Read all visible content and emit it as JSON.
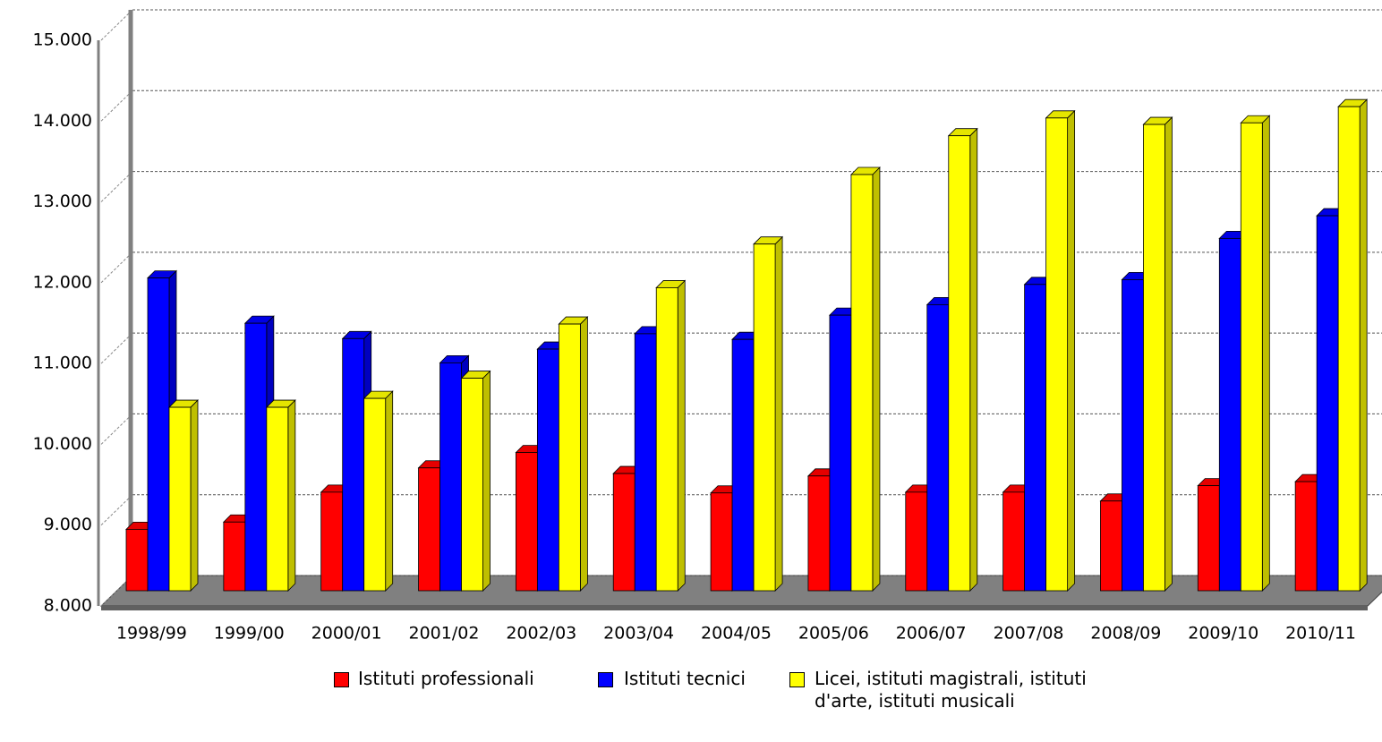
{
  "chart_data": {
    "type": "bar3d",
    "categories": [
      "1998/99",
      "1999/00",
      "2000/01",
      "2001/02",
      "2002/03",
      "2003/04",
      "2004/05",
      "2005/06",
      "2006/07",
      "2007/08",
      "2008/09",
      "2009/10",
      "2010/11"
    ],
    "series": [
      {
        "name": "Istituti professionali",
        "color": "#ff0000",
        "values": [
          8760,
          8850,
          9220,
          9520,
          9710,
          9450,
          9210,
          9420,
          9220,
          9220,
          9110,
          9300,
          9350
        ]
      },
      {
        "name": "Istituti tecnici",
        "color": "#0000ff",
        "values": [
          11870,
          11310,
          11120,
          10820,
          10990,
          11180,
          11110,
          11410,
          11540,
          11790,
          11850,
          12360,
          12640
        ]
      },
      {
        "name": "Licei, istituti magistrali, istituti d'arte, istituti musicali",
        "color": "#ffff00",
        "values": [
          10270,
          10270,
          10380,
          10630,
          11300,
          11750,
          12290,
          13150,
          13630,
          13850,
          13770,
          13790,
          13990
        ]
      }
    ],
    "ylim": [
      8000,
      15000
    ],
    "yticks": [
      {
        "value": 8000,
        "label": "8.000"
      },
      {
        "value": 9000,
        "label": "9.000"
      },
      {
        "value": 10000,
        "label": "10.000"
      },
      {
        "value": 11000,
        "label": "11.000"
      },
      {
        "value": 12000,
        "label": "12.000"
      },
      {
        "value": 13000,
        "label": "13.000"
      },
      {
        "value": 14000,
        "label": "14.000"
      },
      {
        "value": 15000,
        "label": "15.000"
      }
    ],
    "grid": true
  }
}
